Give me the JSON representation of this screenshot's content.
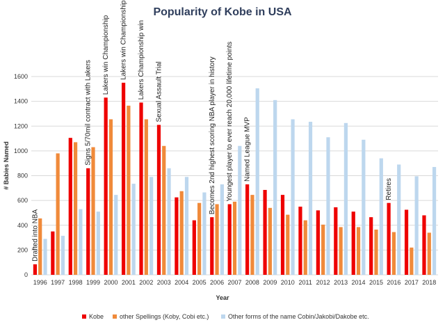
{
  "chart_data": {
    "type": "bar",
    "title": "Popularity of Kobe in USA",
    "xlabel": "Year",
    "ylabel": "# Babies Named",
    "ylim": [
      0,
      1600
    ],
    "yticks": [
      "0",
      "200",
      "400",
      "600",
      "800",
      "1000",
      "1200",
      "1400",
      "1600"
    ],
    "grid": true,
    "legend_position": "bottom",
    "categories": [
      "1996",
      "1997",
      "1998",
      "1999",
      "2000",
      "2001",
      "2002",
      "2003",
      "2004",
      "2005",
      "2006",
      "2007",
      "2008",
      "2009",
      "2010",
      "2011",
      "2012",
      "2013",
      "2014",
      "2015",
      "2016",
      "2017",
      "2018"
    ],
    "series": [
      {
        "name": "Kobe",
        "color": "#ee0000",
        "values": [
          85,
          350,
          1105,
          860,
          1430,
          1550,
          1390,
          1210,
          625,
          440,
          465,
          570,
          730,
          685,
          645,
          550,
          520,
          545,
          510,
          465,
          580,
          525,
          480
        ]
      },
      {
        "name": "other Spellings (Koby, Cobi etc.)",
        "color": "#f08a3a",
        "values": [
          455,
          980,
          1070,
          1030,
          1255,
          1365,
          1255,
          1040,
          675,
          580,
          570,
          590,
          645,
          540,
          485,
          440,
          405,
          385,
          385,
          365,
          345,
          220,
          340
        ]
      },
      {
        "name": "Other forms of the name Cobin/Jakobi/Dakobe etc.",
        "color": "#bdd7ee",
        "values": [
          290,
          315,
          530,
          510,
          645,
          735,
          790,
          860,
          790,
          665,
          730,
          1040,
          1505,
          1410,
          1255,
          1235,
          1110,
          1225,
          1090,
          940,
          890,
          795,
          870
        ]
      }
    ],
    "annotations": [
      {
        "category": "1996",
        "text": "Drafted into NBA"
      },
      {
        "category": "1999",
        "text": "Signs 5/70mil contract with Lakers"
      },
      {
        "category": "2000",
        "text": "Lakers win Championship"
      },
      {
        "category": "2001",
        "text": "Lakers win Championship"
      },
      {
        "category": "2002",
        "text": "Lakers Championship win"
      },
      {
        "category": "2003",
        "text": "Sexual Assault Trial"
      },
      {
        "category": "2006",
        "text": "Becomes 2nd highest scoring NBA player in history"
      },
      {
        "category": "2007",
        "text": "Youngest player to ever reach 20,000 lifetime points"
      },
      {
        "category": "2008",
        "text": "Named League MVP"
      },
      {
        "category": "2016",
        "text": "Retires"
      }
    ]
  }
}
